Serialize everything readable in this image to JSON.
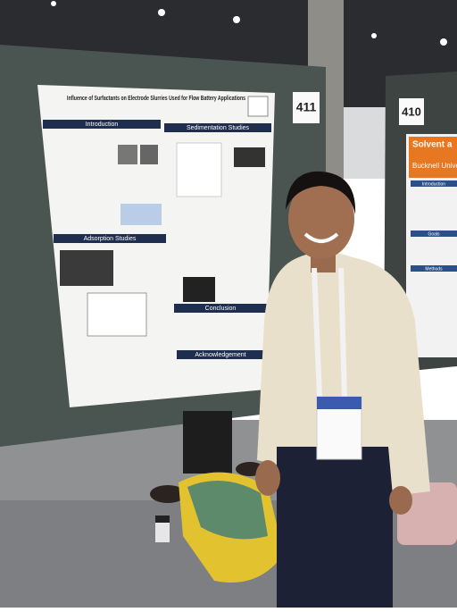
{
  "signs": {
    "left": "411",
    "right": "410"
  },
  "poster": {
    "title": "Influence of Surfactants on Electrode Slurries Used for Flow Battery Applications",
    "sections": [
      "Introduction",
      "Sedimentation Studies",
      "Adsorption Studies",
      "Conclusion",
      "Acknowledgement"
    ]
  },
  "right_poster": {
    "header": "Solvent a",
    "institution": "Bucknell University",
    "sections": [
      "Introduction",
      "Goals",
      "Methods"
    ]
  }
}
